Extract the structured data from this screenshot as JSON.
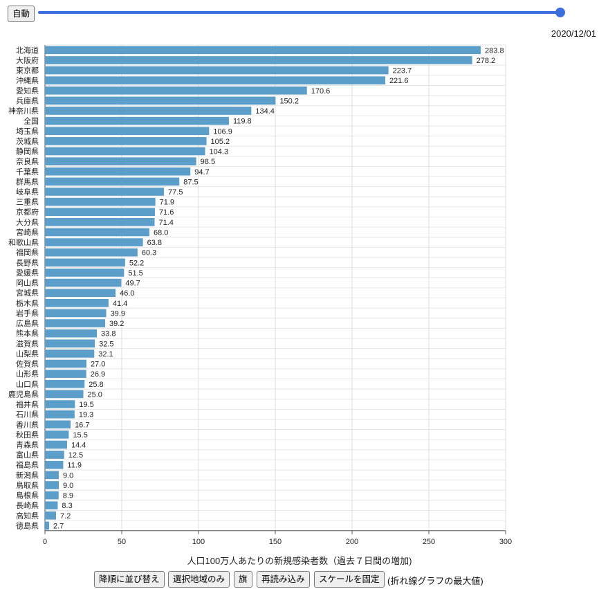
{
  "controls": {
    "auto_label": "自動",
    "slider_value": 1.0,
    "date": "2020/12/01"
  },
  "buttons": {
    "sort": "降順に並び替え",
    "selected_only": "選択地域のみ",
    "flag": "旗",
    "reload": "再読み込み",
    "fix_scale": "スケールを固定",
    "fix_scale_note": "(折れ線グラフの最大値)"
  },
  "colors": {
    "bar": "#5b9ec9",
    "slider": "#3b6fde"
  },
  "chart_data": {
    "type": "bar",
    "orientation": "horizontal",
    "xlabel": "人口100万人あたりの新規感染者数（過去７日間の増加)",
    "xlim": [
      0,
      300
    ],
    "xticks": [
      0,
      50,
      100,
      150,
      200,
      250,
      300
    ],
    "grid": true,
    "categories": [
      "北海道",
      "大阪府",
      "東京都",
      "沖縄県",
      "愛知県",
      "兵庫県",
      "神奈川県",
      "全国",
      "埼玉県",
      "茨城県",
      "静岡県",
      "奈良県",
      "千葉県",
      "群馬県",
      "岐阜県",
      "三重県",
      "京都府",
      "大分県",
      "宮崎県",
      "和歌山県",
      "福岡県",
      "長野県",
      "愛媛県",
      "岡山県",
      "宮城県",
      "栃木県",
      "岩手県",
      "広島県",
      "熊本県",
      "滋賀県",
      "山梨県",
      "佐賀県",
      "山形県",
      "山口県",
      "鹿児島県",
      "福井県",
      "石川県",
      "香川県",
      "秋田県",
      "青森県",
      "富山県",
      "福島県",
      "新潟県",
      "鳥取県",
      "島根県",
      "長崎県",
      "高知県",
      "徳島県"
    ],
    "values": [
      283.8,
      278.2,
      223.7,
      221.6,
      170.6,
      150.2,
      134.4,
      119.8,
      106.9,
      105.2,
      104.3,
      98.5,
      94.7,
      87.5,
      77.5,
      71.9,
      71.6,
      71.4,
      68.0,
      63.8,
      60.3,
      52.2,
      51.5,
      49.7,
      46.0,
      41.4,
      39.9,
      39.2,
      33.8,
      32.5,
      32.1,
      27.0,
      26.9,
      25.8,
      25.0,
      19.5,
      19.3,
      16.7,
      15.5,
      14.4,
      12.5,
      11.9,
      9.0,
      9.0,
      8.9,
      8.3,
      7.2,
      2.7
    ]
  }
}
